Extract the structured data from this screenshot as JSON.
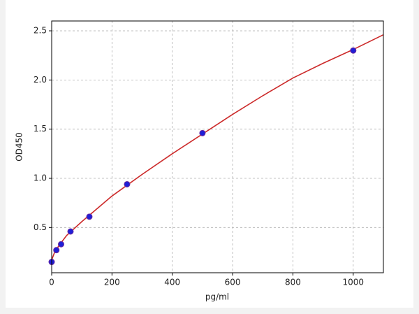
{
  "chart_data": {
    "type": "scatter",
    "xlabel": "pg/ml",
    "ylabel": "OD450",
    "xlim": [
      0,
      1100
    ],
    "ylim": [
      0.04,
      2.6
    ],
    "xticks": [
      0,
      200,
      400,
      600,
      800,
      1000
    ],
    "yticks": [
      0.5,
      {
        "value": 1,
        "label": "1.0"
      },
      1.5,
      {
        "value": 2,
        "label": "2.0"
      },
      2.5
    ],
    "grid": true,
    "series": [
      {
        "type": "scatter",
        "color": "#1f1fd6",
        "x": [
          0,
          15.6,
          31.25,
          62.5,
          125,
          250,
          500,
          1000
        ],
        "values": [
          0.15,
          0.27,
          0.33,
          0.46,
          0.61,
          0.94,
          1.46,
          2.3
        ]
      },
      {
        "type": "line",
        "color": "#cc2a2a",
        "x": [
          0,
          10,
          25,
          50,
          100,
          200,
          300,
          400,
          500,
          600,
          700,
          800,
          900,
          1000,
          1100
        ],
        "values": [
          0.17,
          0.25,
          0.32,
          0.42,
          0.56,
          0.82,
          1.04,
          1.25,
          1.45,
          1.65,
          1.84,
          2.02,
          2.17,
          2.31,
          2.46
        ]
      }
    ]
  }
}
